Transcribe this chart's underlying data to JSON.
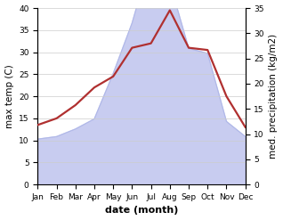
{
  "months": [
    "Jan",
    "Feb",
    "Mar",
    "Apr",
    "May",
    "Jun",
    "Jul",
    "Aug",
    "Sep",
    "Oct",
    "Nov",
    "Dec"
  ],
  "temperature": [
    13.5,
    15.0,
    18.0,
    22.0,
    24.5,
    31.0,
    32.0,
    39.5,
    31.0,
    30.5,
    20.0,
    13.0
  ],
  "precipitation": [
    9.0,
    9.5,
    11.0,
    13.0,
    22.0,
    32.0,
    45.0,
    40.0,
    27.0,
    26.0,
    12.5,
    9.5
  ],
  "temp_color": "#b03030",
  "precip_fill_color": "#c8ccf0",
  "precip_line_color": "#b0b8e8",
  "background_color": "#ffffff",
  "ylabel_left": "max temp (C)",
  "ylabel_right": "med. precipitation (kg/m2)",
  "xlabel": "date (month)",
  "ylim_left": [
    0,
    40
  ],
  "ylim_right": [
    0,
    35
  ],
  "label_fontsize": 7.5,
  "tick_fontsize": 6.5,
  "xlabel_fontsize": 8,
  "xlabel_fontweight": "bold",
  "temp_linewidth": 1.6,
  "grid_color": "#cccccc",
  "grid_linewidth": 0.5
}
